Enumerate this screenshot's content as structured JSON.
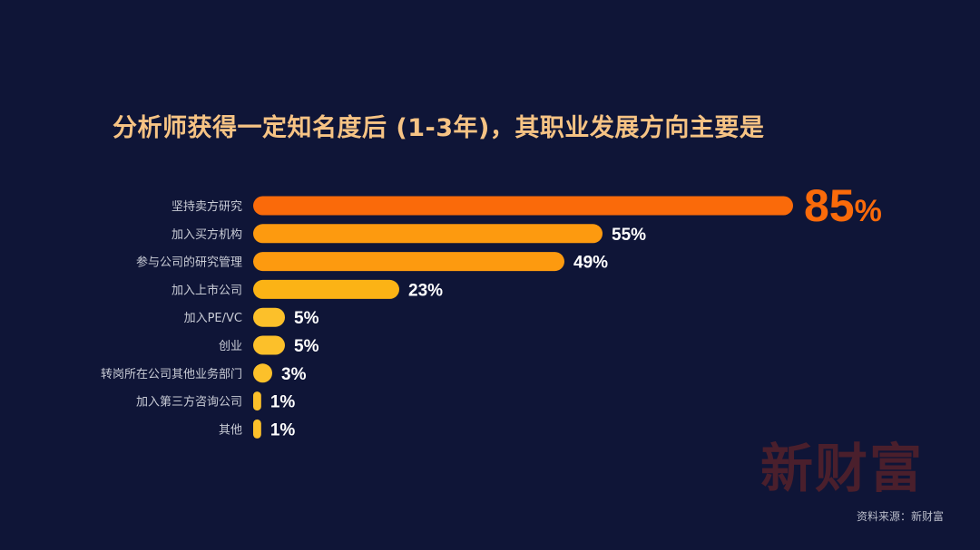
{
  "title": "分析师获得一定知名度后 (1-3年)，其职业发展方向主要是",
  "watermark": "新财富",
  "source": "资料来源：新财富",
  "colors": {
    "background": "#0f1537",
    "title": "#f6c384",
    "bar_top": "#fa6a0a",
    "bar_high": "#fd9a0f",
    "bar_mid": "#fcb315",
    "bar_low": "#fcc02a",
    "label_highlight": "#fa6a0a",
    "label": "#ffffff",
    "category_label": "#c9ccd6"
  },
  "chart_data": {
    "type": "bar",
    "orientation": "horizontal",
    "title": "分析师获得一定知名度后 (1-3年)，其职业发展方向主要是",
    "categories": [
      "坚持卖方研究",
      "加入买方机构",
      "参与公司的研究管理",
      "加入上市公司",
      "加入PE/VC",
      "创业",
      "转岗所在公司其他业务部门",
      "加入第三方咨询公司",
      "其他"
    ],
    "values": [
      85,
      55,
      49,
      23,
      5,
      5,
      3,
      1,
      1
    ],
    "value_labels": [
      "85%",
      "55%",
      "49%",
      "23%",
      "5%",
      "5%",
      "3%",
      "1%",
      "1%"
    ],
    "unit": "%",
    "xlabel": "",
    "ylabel": "",
    "grid": false,
    "legend": "none"
  }
}
